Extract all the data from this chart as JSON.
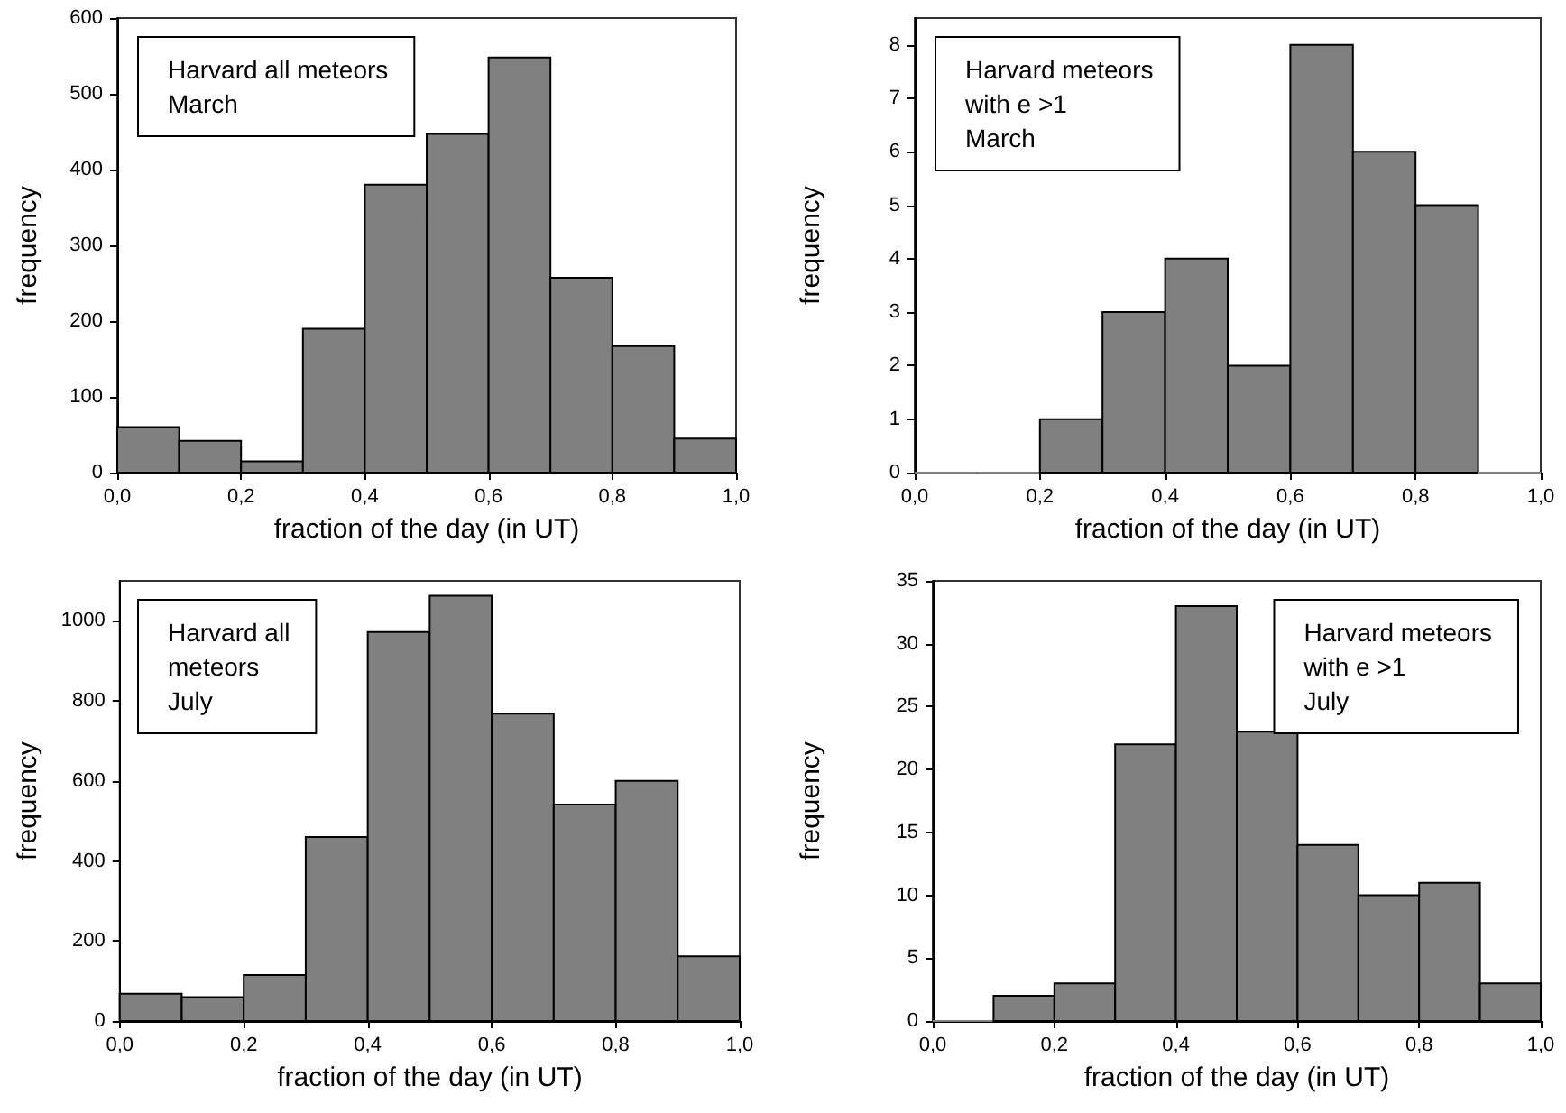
{
  "chart_data": [
    {
      "type": "histogram",
      "xlabel": "fraction of the day (in UT)",
      "ylabel": "frequency",
      "annotations": [
        "Harvard all meteors\nMarch"
      ],
      "bins": [
        0,
        0.1,
        0.2,
        0.3,
        0.4,
        0.5,
        0.6,
        0.7,
        0.8,
        0.9,
        1.0
      ],
      "values": [
        60,
        42,
        15,
        190,
        380,
        447,
        548,
        257,
        167,
        45
      ],
      "color": "#808080",
      "xlim": [
        0,
        1
      ],
      "xticks": [
        {
          "value": 0,
          "label": "0,0"
        },
        {
          "value": 0.2,
          "label": "0,2"
        },
        {
          "value": 0.4,
          "label": "0,4"
        },
        {
          "value": 0.6,
          "label": "0,6"
        },
        {
          "value": 0.8,
          "label": "0,8"
        },
        {
          "value": 1,
          "label": "1,0"
        }
      ],
      "ylim": [
        0,
        600
      ],
      "yticks": [
        0,
        100,
        200,
        300,
        400,
        500,
        600
      ],
      "grid": false
    },
    {
      "type": "histogram",
      "xlabel": "fraction of the day (in UT)",
      "ylabel": "frequency",
      "annotations": [
        "Harvard meteors\nwith e >1\nMarch"
      ],
      "bins": [
        0,
        0.1,
        0.2,
        0.3,
        0.4,
        0.5,
        0.6,
        0.7,
        0.8,
        0.9,
        1.0
      ],
      "values": [
        0,
        0,
        1,
        3,
        4,
        2,
        8,
        6,
        5,
        0
      ],
      "color": "#808080",
      "xlim": [
        0,
        1
      ],
      "xticks": [
        {
          "value": 0,
          "label": "0,0"
        },
        {
          "value": 0.2,
          "label": "0,2"
        },
        {
          "value": 0.4,
          "label": "0,4"
        },
        {
          "value": 0.6,
          "label": "0,6"
        },
        {
          "value": 0.8,
          "label": "0,8"
        },
        {
          "value": 1,
          "label": "1,0"
        }
      ],
      "ylim": [
        0,
        8.5
      ],
      "yticks": [
        0,
        1,
        2,
        3,
        4,
        5,
        6,
        7,
        8
      ],
      "grid": false
    },
    {
      "type": "histogram",
      "xlabel": "fraction of the day (in UT)",
      "ylabel": "frequency",
      "annotations": [
        "Harvard all\nmeteors\nJuly"
      ],
      "bins": [
        0,
        0.1,
        0.2,
        0.3,
        0.4,
        0.5,
        0.6,
        0.7,
        0.8,
        0.9,
        1.0
      ],
      "values": [
        68,
        60,
        115,
        460,
        972,
        1063,
        768,
        541,
        600,
        162
      ],
      "color": "#808080",
      "xlim": [
        0,
        1
      ],
      "xticks": [
        {
          "value": 0,
          "label": "0,0"
        },
        {
          "value": 0.2,
          "label": "0,2"
        },
        {
          "value": 0.4,
          "label": "0,4"
        },
        {
          "value": 0.6,
          "label": "0,6"
        },
        {
          "value": 0.8,
          "label": "0,8"
        },
        {
          "value": 1,
          "label": "1,0"
        }
      ],
      "ylim": [
        0,
        1100
      ],
      "yticks": [
        0,
        200,
        400,
        600,
        800,
        1000
      ],
      "grid": false
    },
    {
      "type": "histogram",
      "xlabel": "fraction of the day (in UT)",
      "ylabel": "frequency",
      "annotations": [
        "Harvard meteors\nwith e >1\nJuly"
      ],
      "bins": [
        0,
        0.1,
        0.2,
        0.3,
        0.4,
        0.5,
        0.6,
        0.7,
        0.8,
        0.9,
        1.0
      ],
      "values": [
        0,
        2,
        3,
        22,
        33,
        23,
        14,
        10,
        11,
        3
      ],
      "color": "#808080",
      "xlim": [
        0,
        1
      ],
      "xticks": [
        {
          "value": 0,
          "label": "0,0"
        },
        {
          "value": 0.2,
          "label": "0,2"
        },
        {
          "value": 0.4,
          "label": "0,4"
        },
        {
          "value": 0.6,
          "label": "0,6"
        },
        {
          "value": 0.8,
          "label": "0,8"
        },
        {
          "value": 1,
          "label": "1,0"
        }
      ],
      "ylim": [
        0,
        35
      ],
      "yticks": [
        0,
        5,
        10,
        15,
        20,
        25,
        30,
        35
      ],
      "grid": false
    }
  ]
}
